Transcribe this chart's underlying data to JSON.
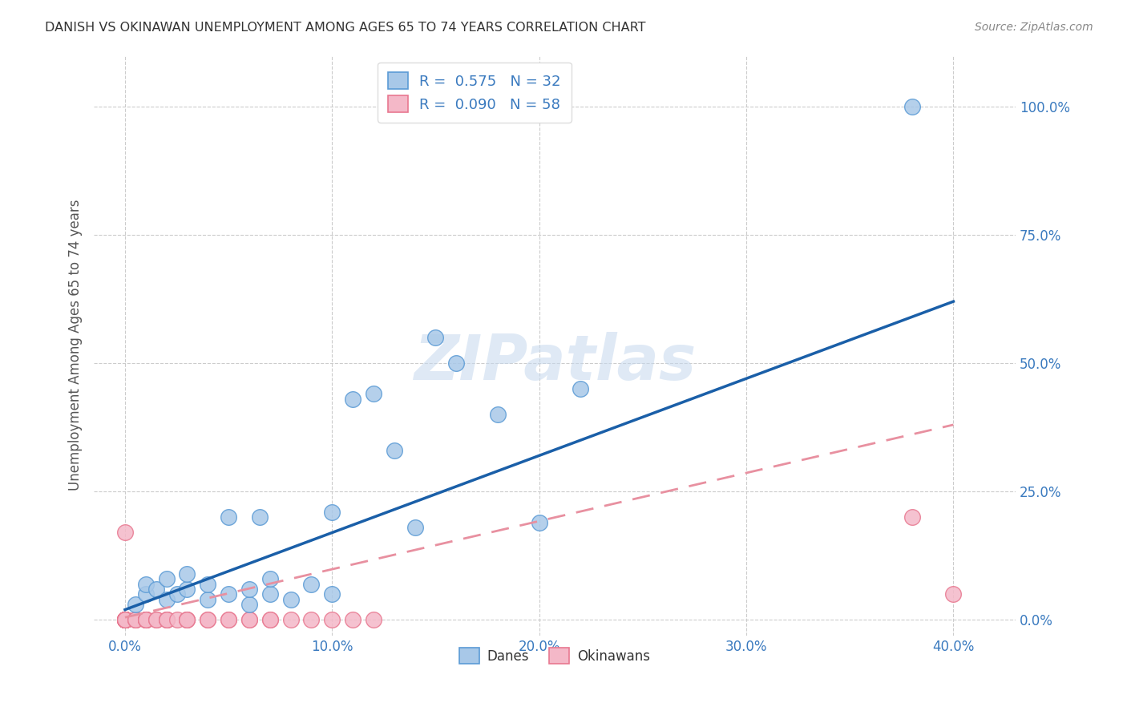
{
  "title": "DANISH VS OKINAWAN UNEMPLOYMENT AMONG AGES 65 TO 74 YEARS CORRELATION CHART",
  "source": "Source: ZipAtlas.com",
  "xlabel_ticks": [
    "0.0%",
    "10.0%",
    "20.0%",
    "30.0%",
    "40.0%"
  ],
  "xlabel_tick_vals": [
    0.0,
    0.1,
    0.2,
    0.3,
    0.4
  ],
  "ylabel": "Unemployment Among Ages 65 to 74 years",
  "ylabel_ticks": [
    "0.0%",
    "25.0%",
    "50.0%",
    "75.0%",
    "100.0%"
  ],
  "ylabel_tick_vals": [
    0.0,
    0.25,
    0.5,
    0.75,
    1.0
  ],
  "xlim": [
    -0.015,
    0.43
  ],
  "ylim": [
    -0.03,
    1.1
  ],
  "danes_R": 0.575,
  "danes_N": 32,
  "okinawans_R": 0.09,
  "okinawans_N": 58,
  "danes_color": "#a8c8e8",
  "danes_edge_color": "#5b9bd5",
  "okinawans_color": "#f4b8c8",
  "okinawans_edge_color": "#e87890",
  "danes_line_color": "#1a5fa8",
  "okinawans_line_color": "#e890a0",
  "danes_x": [
    0.005,
    0.01,
    0.01,
    0.015,
    0.02,
    0.02,
    0.025,
    0.03,
    0.03,
    0.04,
    0.04,
    0.05,
    0.05,
    0.06,
    0.06,
    0.065,
    0.07,
    0.07,
    0.08,
    0.09,
    0.1,
    0.1,
    0.11,
    0.12,
    0.13,
    0.14,
    0.15,
    0.16,
    0.18,
    0.2,
    0.22,
    0.38
  ],
  "danes_y": [
    0.03,
    0.05,
    0.07,
    0.06,
    0.04,
    0.08,
    0.05,
    0.06,
    0.09,
    0.04,
    0.07,
    0.2,
    0.05,
    0.03,
    0.06,
    0.2,
    0.05,
    0.08,
    0.04,
    0.07,
    0.21,
    0.05,
    0.43,
    0.44,
    0.33,
    0.18,
    0.55,
    0.5,
    0.4,
    0.19,
    0.45,
    1.0
  ],
  "okinawans_x": [
    0.0,
    0.0,
    0.0,
    0.0,
    0.0,
    0.0,
    0.0,
    0.0,
    0.0,
    0.0,
    0.0,
    0.0,
    0.0,
    0.0,
    0.0,
    0.0,
    0.0,
    0.0,
    0.0,
    0.0,
    0.0,
    0.0,
    0.0,
    0.0,
    0.0,
    0.005,
    0.005,
    0.005,
    0.01,
    0.01,
    0.01,
    0.01,
    0.01,
    0.01,
    0.015,
    0.015,
    0.02,
    0.02,
    0.02,
    0.025,
    0.03,
    0.03,
    0.03,
    0.04,
    0.04,
    0.05,
    0.05,
    0.06,
    0.06,
    0.07,
    0.07,
    0.08,
    0.09,
    0.1,
    0.11,
    0.12,
    0.38,
    0.4
  ],
  "okinawans_y": [
    0.0,
    0.0,
    0.0,
    0.0,
    0.0,
    0.0,
    0.0,
    0.0,
    0.0,
    0.0,
    0.0,
    0.0,
    0.0,
    0.0,
    0.0,
    0.0,
    0.0,
    0.0,
    0.0,
    0.0,
    0.0,
    0.0,
    0.0,
    0.0,
    0.17,
    0.0,
    0.0,
    0.0,
    0.0,
    0.0,
    0.0,
    0.0,
    0.0,
    0.0,
    0.0,
    0.0,
    0.0,
    0.0,
    0.0,
    0.0,
    0.0,
    0.0,
    0.0,
    0.0,
    0.0,
    0.0,
    0.0,
    0.0,
    0.0,
    0.0,
    0.0,
    0.0,
    0.0,
    0.0,
    0.0,
    0.0,
    0.2,
    0.05
  ],
  "danes_trend_x": [
    0.0,
    0.4
  ],
  "danes_trend_y": [
    0.02,
    0.62
  ],
  "okinawans_trend_x": [
    0.0,
    0.4
  ],
  "okinawans_trend_y": [
    0.005,
    0.38
  ],
  "watermark": "ZIPatlas",
  "background_color": "#ffffff",
  "grid_color": "#cccccc",
  "legend_label_danes": "Danes",
  "legend_label_okinawans": "Okinawans"
}
